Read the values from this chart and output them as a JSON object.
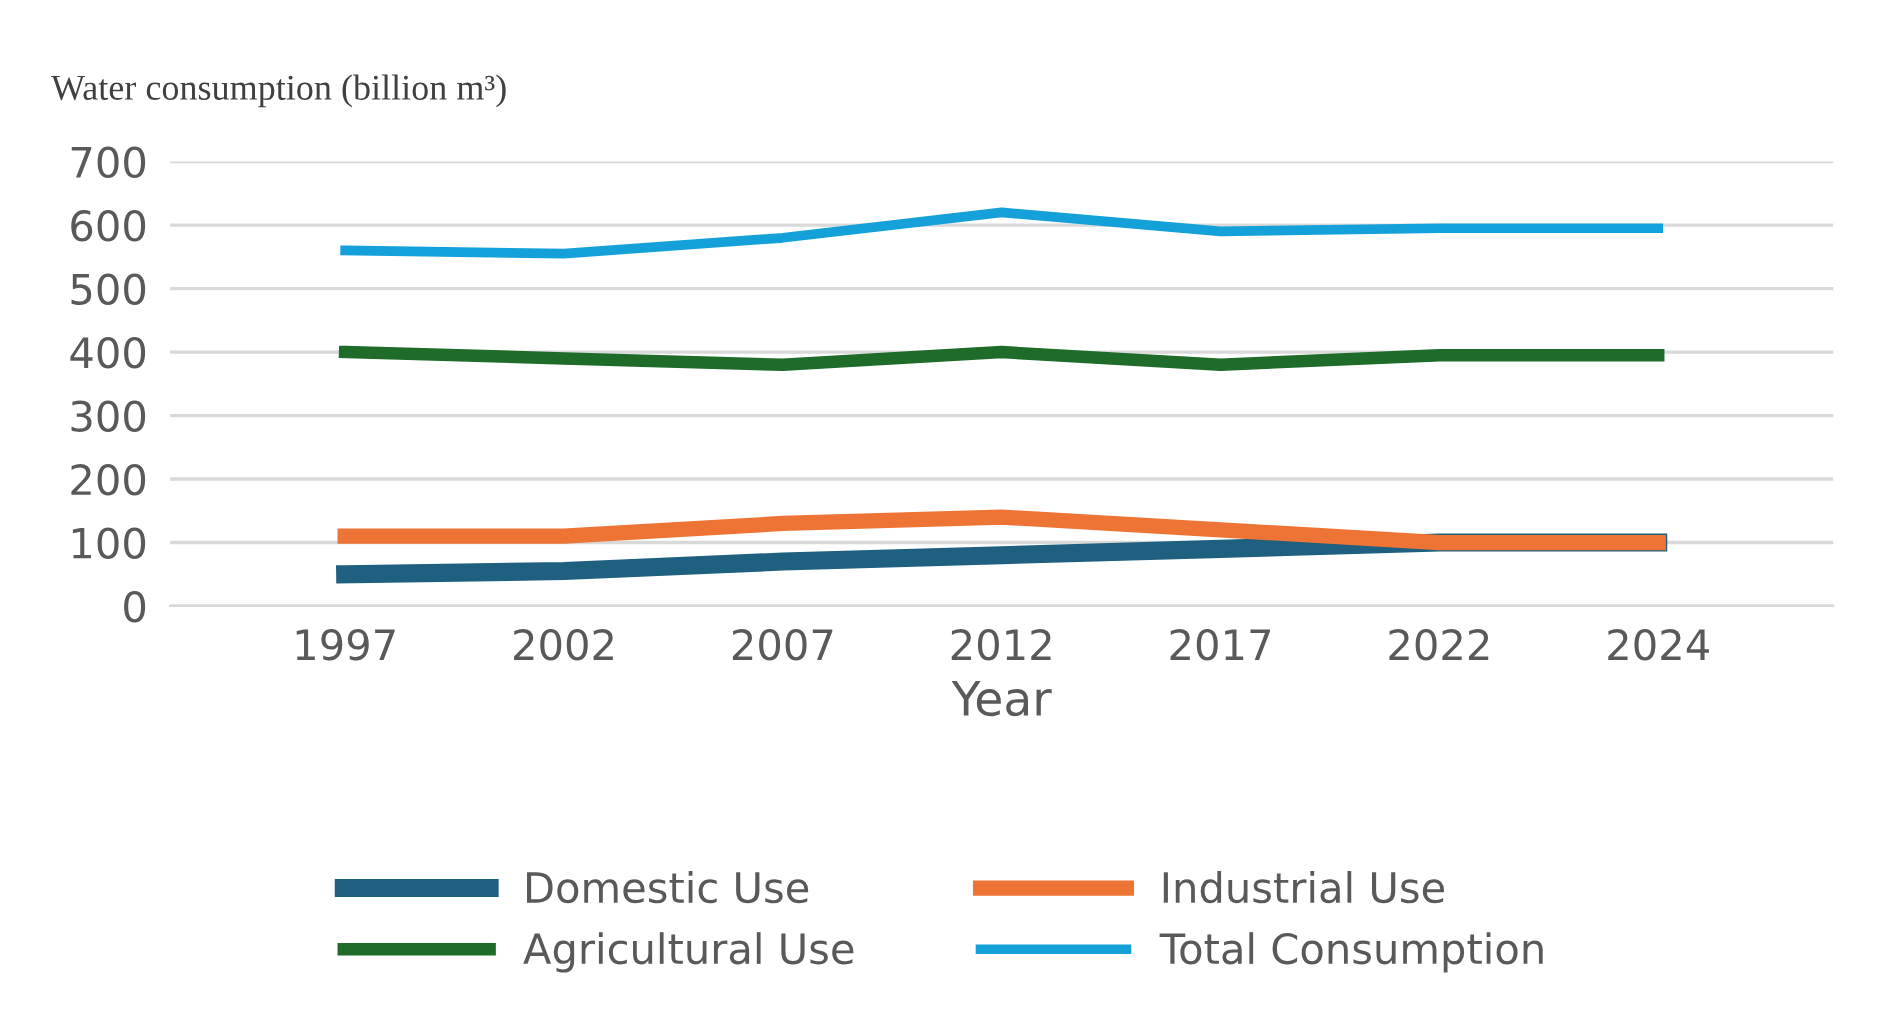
{
  "chart_data": {
    "type": "line",
    "ylabel": "Water consumption (billion m³)",
    "xlabel": "Year",
    "categories": [
      "1997",
      "2002",
      "2007",
      "2012",
      "2017",
      "2022",
      "2024"
    ],
    "series": [
      {
        "name": "Domestic Use",
        "color": "#1f5f7f",
        "values": [
          50,
          55,
          70,
          80,
          90,
          100,
          100
        ]
      },
      {
        "name": "Industrial Use",
        "color": "#ed7434",
        "values": [
          110,
          110,
          130,
          140,
          120,
          100,
          100
        ]
      },
      {
        "name": "Agricultural Use",
        "color": "#1e6b2a",
        "values": [
          400,
          390,
          380,
          400,
          380,
          395,
          395
        ]
      },
      {
        "name": "Total Consumption",
        "color": "#14a0d8",
        "values": [
          560,
          555,
          580,
          620,
          590,
          595,
          595
        ]
      }
    ],
    "ylim": [
      0,
      700
    ],
    "yticks": [
      0,
      100,
      200,
      300,
      400,
      500,
      600,
      700
    ],
    "grid": "y",
    "legend": "bottom",
    "marker": "none",
    "line_style": "solid"
  }
}
